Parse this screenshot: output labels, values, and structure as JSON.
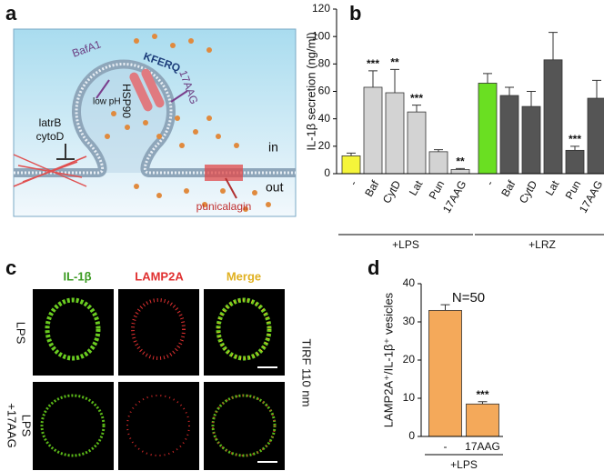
{
  "panel_labels": [
    "a",
    "b",
    "c",
    "d"
  ],
  "diagram": {
    "bafa1": "BafA1",
    "low_ph": "low pH",
    "kferq": "KFERQ",
    "hsp90": "HSP90",
    "aag": "17AAG",
    "latrb": "latrB",
    "cytod": "cytoD",
    "inside": "in",
    "outside": "out",
    "punicalagin": "punicalagin"
  },
  "microscopy": {
    "columns": [
      "IL-1β",
      "LAMP2A",
      "Merge"
    ],
    "rows": [
      [
        "LPS"
      ],
      [
        "LPS",
        "+17AAG"
      ]
    ],
    "side_label": "TIRF 110 nm"
  },
  "chart_data": [
    {
      "type": "bar",
      "y_label": "IL-1β secretion (ng/ml)",
      "ylim": [
        0,
        120
      ],
      "yticks": [
        0,
        20,
        40,
        60,
        80,
        100,
        120
      ],
      "groups": [
        {
          "label": "+LPS",
          "categories": [
            "-",
            "Baf",
            "CytD",
            "Lat",
            "Pun",
            "17AAG"
          ],
          "values": [
            13,
            63,
            59,
            45,
            16,
            3
          ],
          "errors": [
            2,
            12,
            17,
            5,
            1.5,
            0.7
          ],
          "colors": [
            "#f5f53a",
            "#d3d3d3",
            "#d3d3d3",
            "#d3d3d3",
            "#d3d3d3",
            "#d3d3d3"
          ],
          "significance": [
            null,
            "***",
            "**",
            "***",
            null,
            "**"
          ]
        },
        {
          "label": "+LRZ",
          "categories": [
            "-",
            "Baf",
            "CytD",
            "Lat",
            "Pun",
            "17AAG"
          ],
          "values": [
            66,
            57,
            49,
            83,
            17,
            55
          ],
          "errors": [
            7,
            6,
            11,
            20,
            3,
            13
          ],
          "colors": [
            "#6adf22",
            "#555555",
            "#555555",
            "#555555",
            "#555555",
            "#555555"
          ],
          "significance": [
            null,
            null,
            null,
            null,
            "***",
            null
          ]
        }
      ]
    },
    {
      "type": "bar",
      "y_label": "LAMP2A⁺/IL-1β⁺ vesicles",
      "ylim": [
        0,
        40
      ],
      "yticks": [
        0,
        10,
        20,
        30,
        40
      ],
      "annotation": "N=50",
      "groups": [
        {
          "label": "+LPS",
          "categories": [
            "-",
            "17AAG"
          ],
          "values": [
            33,
            8.5
          ],
          "errors": [
            1.5,
            0.6
          ],
          "colors": [
            "#f4a95a",
            "#f4a95a"
          ],
          "significance": [
            null,
            "***"
          ]
        }
      ]
    }
  ]
}
